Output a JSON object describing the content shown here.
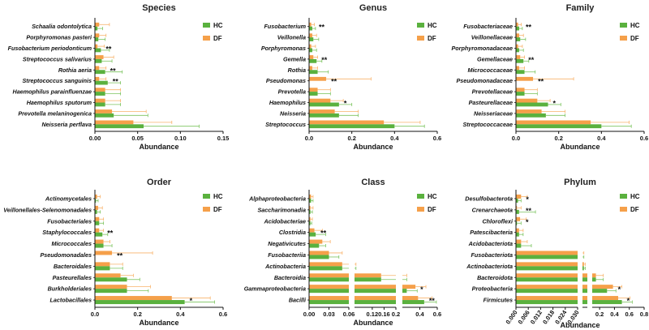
{
  "colors": {
    "hc": "#5ab13e",
    "df": "#f5a04a",
    "hc_err": "#7cc45f",
    "df_err": "#f8b36b"
  },
  "legend": {
    "hc": "HC",
    "df": "DF"
  },
  "chart_data": [
    {
      "type": "bar",
      "orientation": "horizontal",
      "title": "Species",
      "xlabel": "Abundance",
      "xlim": [
        0,
        0.15
      ],
      "xticks": [
        "0.00",
        "0.05",
        "0.10",
        "0.15"
      ],
      "xtick_values": [
        0,
        0.05,
        0.1,
        0.15
      ],
      "categories": [
        "Schaalia odontolytica",
        "Porphyromonas pasteri",
        "Fusobacterium periodonticum",
        "Streptococcus salivarius",
        "Rothia aeria",
        "Streptococcus sanguinis",
        "Haemophilus parainfluenzae",
        "Haemophilus sputorum",
        "Prevotella melaninogenica",
        "Neisseria perflava"
      ],
      "series": [
        {
          "name": "HC",
          "values": [
            0.003,
            0.004,
            0.007,
            0.008,
            0.012,
            0.015,
            0.012,
            0.012,
            0.022,
            0.057
          ],
          "errors": [
            0.006,
            0.008,
            0.01,
            0.012,
            0.02,
            0.015,
            0.018,
            0.018,
            0.04,
            0.065
          ]
        },
        {
          "name": "DF",
          "values": [
            0.005,
            0.005,
            0.003,
            0.01,
            0.005,
            0.005,
            0.012,
            0.012,
            0.02,
            0.045
          ],
          "errors": [
            0.012,
            0.008,
            0.008,
            0.012,
            0.008,
            0.008,
            0.018,
            0.018,
            0.04,
            0.045
          ]
        }
      ],
      "significance": [
        "",
        "",
        "**",
        "",
        "**",
        "**",
        "",
        "",
        "",
        ""
      ]
    },
    {
      "type": "bar",
      "orientation": "horizontal",
      "title": "Genus",
      "xlabel": "Abundance",
      "xlim": [
        0,
        0.6
      ],
      "xticks": [
        "0.0",
        "0.2",
        "0.4",
        "0.6"
      ],
      "xtick_values": [
        0,
        0.2,
        0.4,
        0.6
      ],
      "categories": [
        "Fusobacterium",
        "Veillonella",
        "Porphyromonas",
        "Gemella",
        "Rothia",
        "Pseudomonas",
        "Prevotella",
        "Haemophilus",
        "Neisseria",
        "Streptococcus"
      ],
      "series": [
        {
          "name": "HC",
          "values": [
            0.015,
            0.02,
            0.015,
            0.035,
            0.04,
            0.0,
            0.04,
            0.14,
            0.14,
            0.4
          ],
          "errors": [
            0.015,
            0.025,
            0.02,
            0.025,
            0.05,
            0.0,
            0.06,
            0.06,
            0.09,
            0.14
          ]
        },
        {
          "name": "DF",
          "values": [
            0.01,
            0.015,
            0.01,
            0.02,
            0.015,
            0.08,
            0.04,
            0.1,
            0.12,
            0.35
          ],
          "errors": [
            0.015,
            0.02,
            0.02,
            0.02,
            0.025,
            0.21,
            0.06,
            0.06,
            0.11,
            0.17
          ]
        }
      ],
      "significance": [
        "**",
        "",
        "",
        "**",
        "",
        "**",
        "",
        "*",
        "",
        ""
      ]
    },
    {
      "type": "bar",
      "orientation": "horizontal",
      "title": "Family",
      "xlabel": "Abundance",
      "xlim": [
        0,
        0.6
      ],
      "xticks": [
        "0.0",
        "0.2",
        "0.4",
        "0.6"
      ],
      "xtick_values": [
        0,
        0.2,
        0.4,
        0.6
      ],
      "categories": [
        "Fusobacteriaceae",
        "Veillonellaceae",
        "Porphyromonadaceae",
        "Gemellaceae",
        "Micrococcaceae",
        "Pseudomonadaceae",
        "Prevotellaceae",
        "Pasteurellaceae",
        "Neisseriaceae",
        "Streptococcaceae"
      ],
      "series": [
        {
          "name": "HC",
          "values": [
            0.015,
            0.02,
            0.015,
            0.035,
            0.04,
            0.0,
            0.04,
            0.15,
            0.14,
            0.4
          ],
          "errors": [
            0.015,
            0.025,
            0.02,
            0.025,
            0.05,
            0.0,
            0.06,
            0.06,
            0.09,
            0.14
          ]
        },
        {
          "name": "DF",
          "values": [
            0.01,
            0.015,
            0.01,
            0.02,
            0.015,
            0.08,
            0.04,
            0.1,
            0.12,
            0.35
          ],
          "errors": [
            0.015,
            0.02,
            0.02,
            0.02,
            0.025,
            0.19,
            0.06,
            0.06,
            0.11,
            0.18
          ]
        }
      ],
      "significance": [
        "**",
        "",
        "",
        "**",
        "",
        "**",
        "",
        "*",
        "",
        ""
      ]
    },
    {
      "type": "bar",
      "orientation": "horizontal",
      "title": "Order",
      "xlabel": "Abundance",
      "xlim": [
        0,
        0.6
      ],
      "xticks": [
        "0.0",
        "0.2",
        "0.4",
        "0.6"
      ],
      "xtick_values": [
        0,
        0.2,
        0.4,
        0.6
      ],
      "categories": [
        "Actinomycetales",
        "Veillonellales-Selenomonadales",
        "Fusobacteriales",
        "Staphylococcales",
        "Micrococcales",
        "Pseudomonadales",
        "Bacteroidales",
        "Pasteurellales",
        "Burkholderiales",
        "Lactobacillales"
      ],
      "series": [
        {
          "name": "HC",
          "values": [
            0.005,
            0.01,
            0.02,
            0.035,
            0.04,
            0.0,
            0.07,
            0.15,
            0.15,
            0.42
          ],
          "errors": [
            0.01,
            0.015,
            0.02,
            0.025,
            0.04,
            0.0,
            0.06,
            0.06,
            0.1,
            0.14
          ]
        },
        {
          "name": "DF",
          "values": [
            0.01,
            0.015,
            0.02,
            0.02,
            0.04,
            0.08,
            0.07,
            0.12,
            0.15,
            0.36
          ],
          "errors": [
            0.015,
            0.02,
            0.02,
            0.02,
            0.03,
            0.19,
            0.06,
            0.06,
            0.11,
            0.18
          ]
        }
      ],
      "significance": [
        "",
        "",
        "",
        "**",
        "",
        "**",
        "",
        "",
        "",
        "*"
      ]
    },
    {
      "type": "bar",
      "orientation": "horizontal",
      "title": "Class",
      "xlabel": "Abundance",
      "broken_axis": true,
      "segments": [
        {
          "range": [
            0,
            0.06
          ],
          "ticks": [
            "0.00",
            "0.03",
            "0.06"
          ],
          "tick_values": [
            0,
            0.03,
            0.06
          ]
        },
        {
          "range": [
            0.06,
            0.2
          ],
          "ticks": [
            "0.12",
            "0.16"
          ],
          "tick_values": [
            0.12,
            0.16
          ]
        },
        {
          "range": [
            0.2,
            0.6
          ],
          "ticks": [
            "0.2",
            "0.4",
            "0.6"
          ],
          "tick_values": [
            0.2,
            0.4,
            0.6
          ]
        }
      ],
      "categories": [
        "Alphaproteobacteria",
        "Saccharimonadia",
        "Acidobacteriae",
        "Clostridia",
        "Negativicutes",
        "Fusobacteriia",
        "Actinobacteria",
        "Bacteroidia",
        "Gammaproteobacteria",
        "Bacilli"
      ],
      "series": [
        {
          "name": "HC",
          "values": [
            0.003,
            0.002,
            0.002,
            0.01,
            0.015,
            0.03,
            0.05,
            0.15,
            0.25,
            0.45
          ],
          "errors": [
            0.003,
            0.003,
            0.002,
            0.015,
            0.01,
            0.015,
            0.015,
            0.1,
            0.12,
            0.14
          ]
        },
        {
          "name": "DF",
          "values": [
            0.003,
            0.002,
            0.002,
            0.008,
            0.02,
            0.03,
            0.05,
            0.15,
            0.35,
            0.38
          ],
          "errors": [
            0.003,
            0.004,
            0.003,
            0.012,
            0.012,
            0.02,
            0.015,
            0.1,
            0.12,
            0.16
          ]
        }
      ],
      "significance": [
        "",
        "",
        "",
        "**",
        "",
        "",
        "",
        "",
        "*",
        "**"
      ]
    },
    {
      "type": "bar",
      "orientation": "horizontal",
      "title": "Phylum",
      "xlabel": "Abundance",
      "broken_axis": true,
      "segments": [
        {
          "range": [
            0,
            0.03
          ],
          "ticks": [
            "0.000",
            "0.006",
            "0.012",
            "0.018",
            "0.024",
            "0.030"
          ],
          "tick_values": [
            0,
            0.006,
            0.012,
            0.018,
            0.024,
            0.03
          ]
        },
        {
          "range": [
            0.03,
            0.1
          ],
          "ticks": [],
          "tick_values": []
        },
        {
          "range": [
            0.1,
            0.8
          ],
          "ticks": [
            "0.2",
            "0.4",
            "0.6",
            "0.8"
          ],
          "tick_values": [
            0.2,
            0.4,
            0.6,
            0.8
          ]
        }
      ],
      "categories": [
        "Desulfobacterota",
        "Crenarchaeota",
        "Chloroflexi",
        "Patescibacteria",
        "Acidobacteriota",
        "Fusobacteriota",
        "Actinobacteriota",
        "Bacteroidota",
        "Proteobacteria",
        "Firmicutes"
      ],
      "series": [
        {
          "name": "HC",
          "values": [
            0.001,
            0.0015,
            0.0005,
            0.0015,
            0.0025,
            0.03,
            0.05,
            0.15,
            0.3,
            0.5
          ],
          "errors": [
            0.0015,
            0.008,
            0.002,
            0.002,
            0.005,
            0.02,
            0.02,
            0.1,
            0.12,
            0.14
          ]
        },
        {
          "name": "DF",
          "values": [
            0.0025,
            0.0005,
            0.002,
            0.0015,
            0.0025,
            0.03,
            0.05,
            0.15,
            0.38,
            0.45
          ],
          "errors": [
            0.003,
            0.002,
            0.003,
            0.002,
            0.003,
            0.02,
            0.02,
            0.1,
            0.12,
            0.16
          ]
        }
      ],
      "significance": [
        "*",
        "**",
        "*",
        "",
        "",
        "",
        "",
        "",
        "*",
        "*"
      ]
    }
  ]
}
